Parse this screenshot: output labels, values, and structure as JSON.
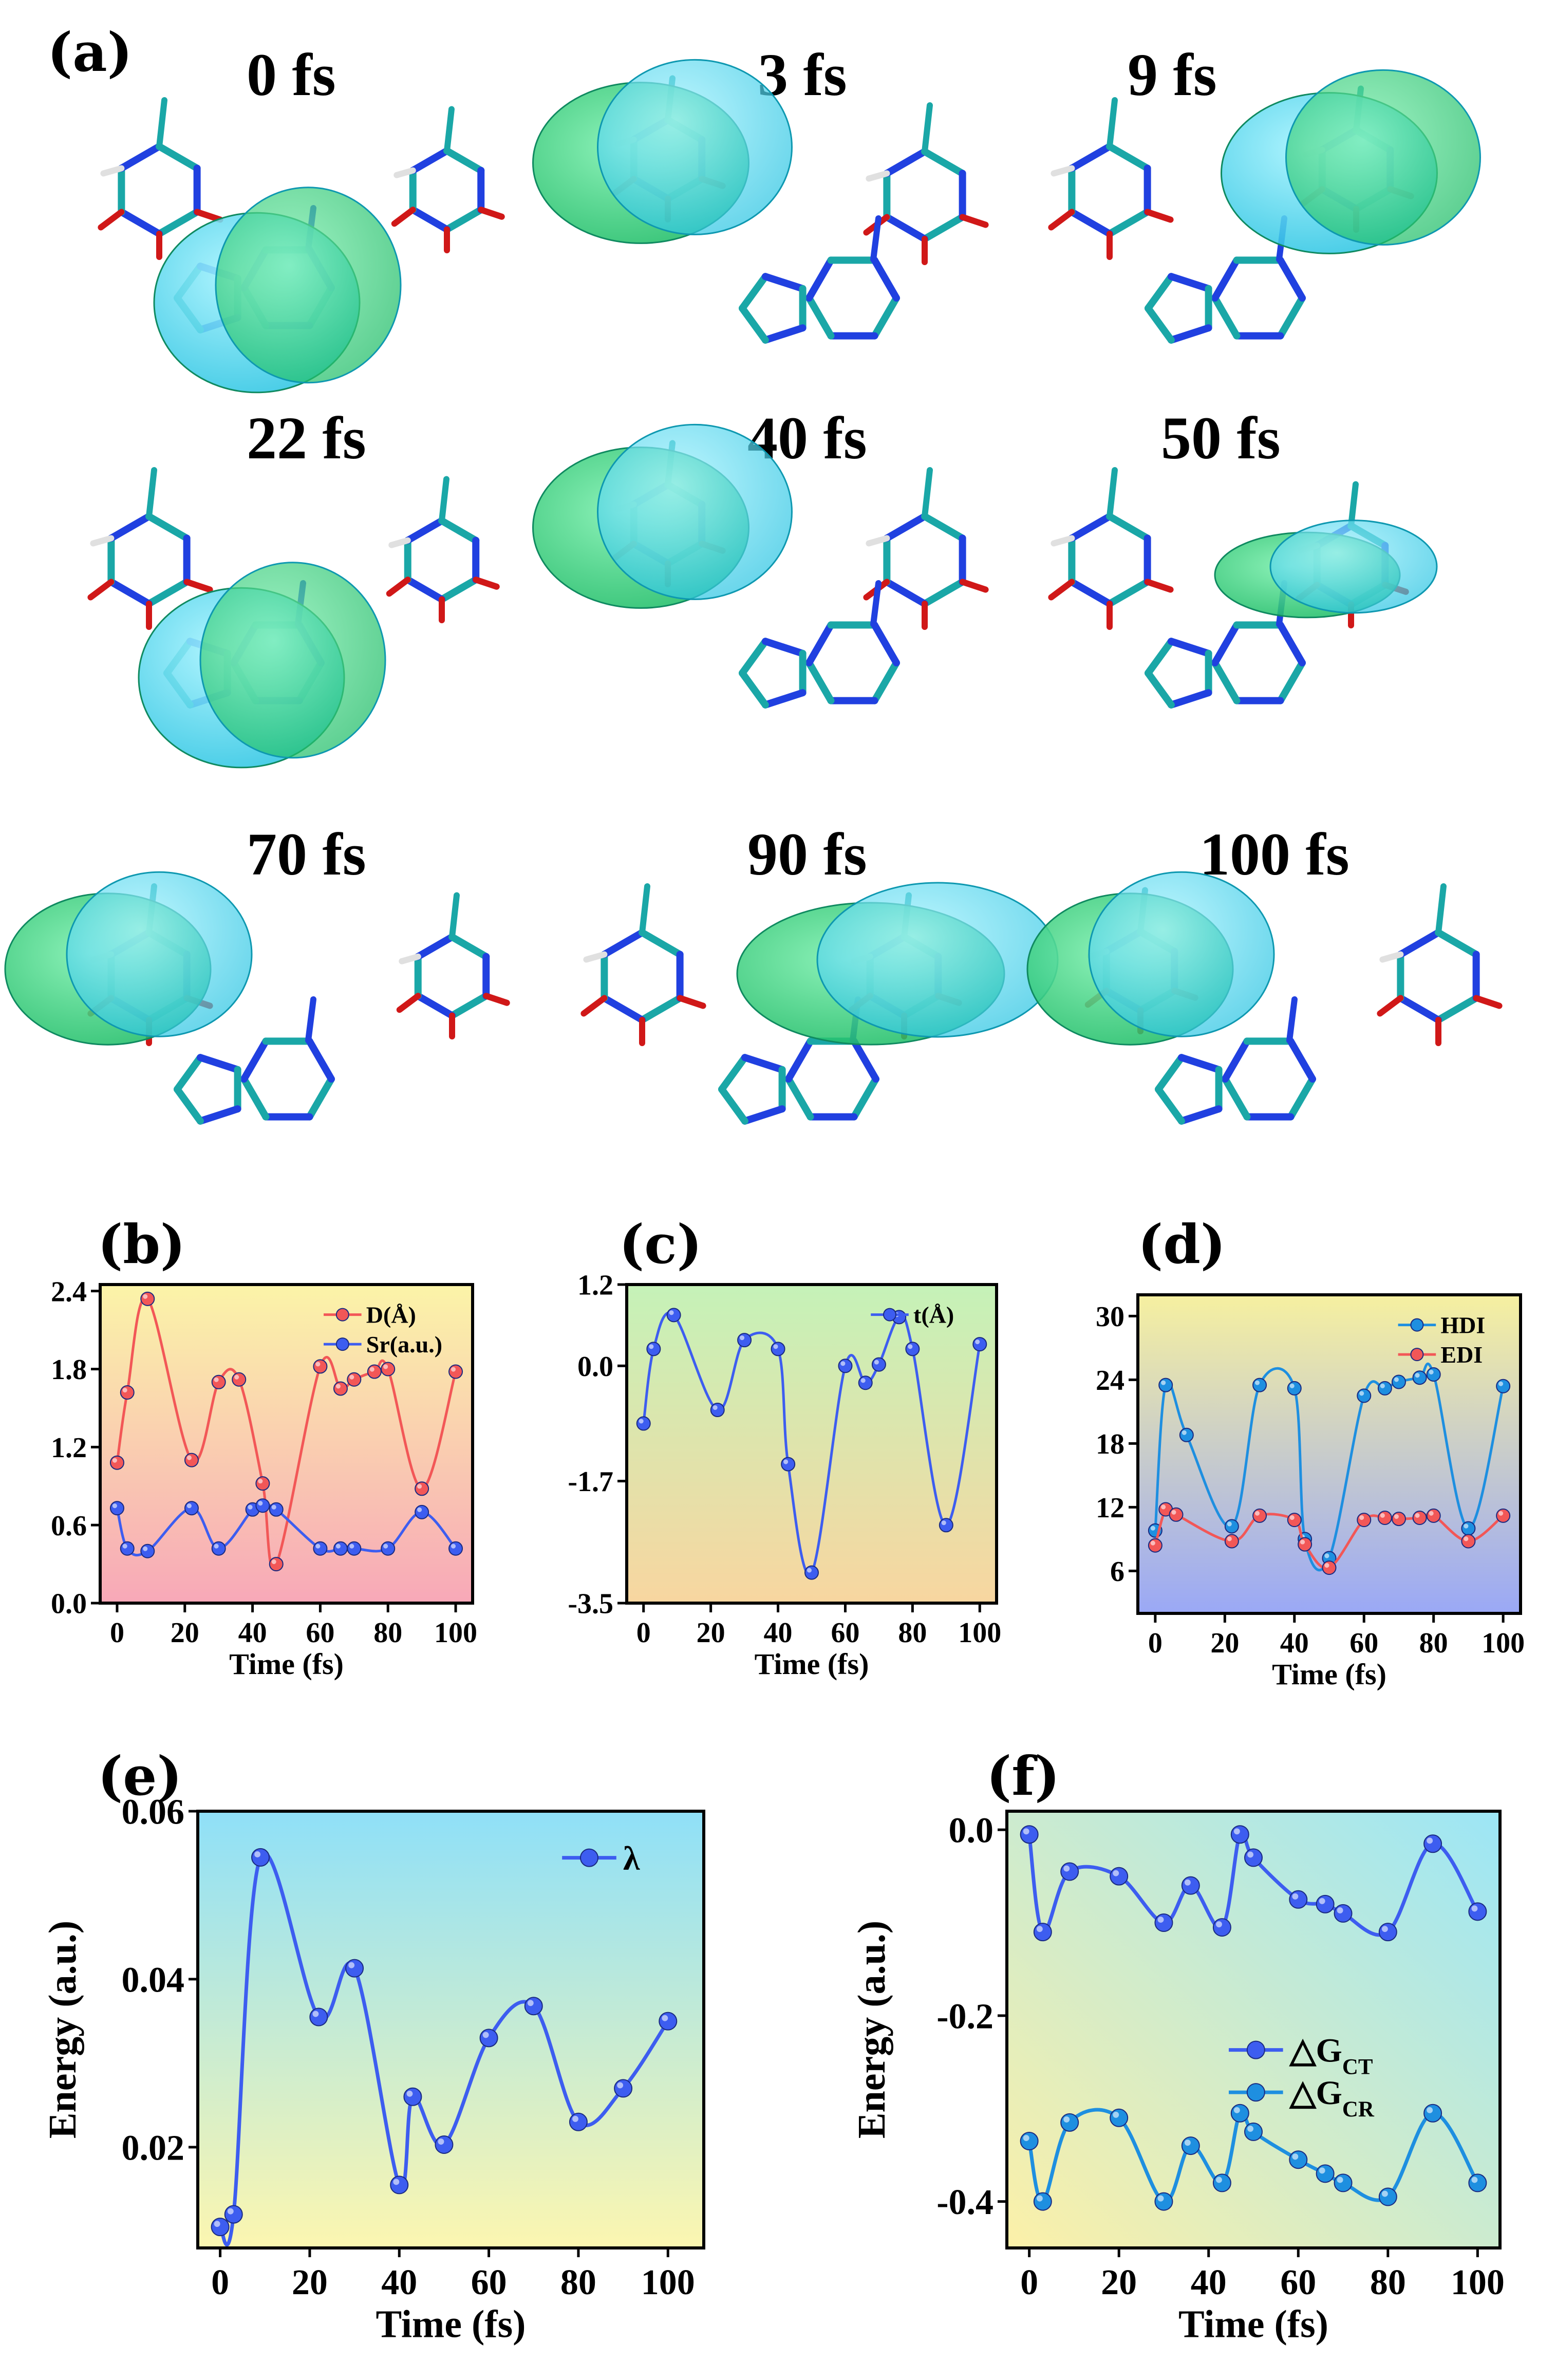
{
  "panel_labels": {
    "a": "(a)",
    "b": "(b)",
    "c": "(c)",
    "d": "(d)",
    "e": "(e)",
    "f": "(f)"
  },
  "snapshots": [
    {
      "time": "0 fs"
    },
    {
      "time": "3 fs"
    },
    {
      "time": "9 fs"
    },
    {
      "time": "22 fs"
    },
    {
      "time": "40 fs"
    },
    {
      "time": "50 fs"
    },
    {
      "time": "70 fs"
    },
    {
      "time": "90 fs"
    },
    {
      "time": "100 fs"
    }
  ],
  "colors": {
    "red": "#f25757",
    "blue": "#3d5df0",
    "cyan": "#1e8fe0",
    "orbital_green": "#2fd47a",
    "orbital_cyan": "#3fd6ee"
  },
  "chart_data": [
    {
      "id": "b",
      "type": "line",
      "xlabel": "Time (fs)",
      "ylabel": "",
      "xlim": [
        -5,
        105
      ],
      "ylim": [
        0.0,
        2.45
      ],
      "xticks": [
        0,
        20,
        40,
        60,
        80,
        100
      ],
      "xticklabels": [
        "0",
        "20",
        "40",
        "60",
        "80",
        "100"
      ],
      "yticks": [
        0.0,
        0.6,
        1.2,
        1.8,
        2.4
      ],
      "yticklabels": [
        "0.0",
        "0.6",
        "1.2",
        "1.8",
        "2.4"
      ],
      "legend_position": "top-right",
      "series": [
        {
          "name": "D(Å)",
          "color": "#f25757",
          "x": [
            0,
            3,
            9,
            22,
            30,
            36,
            43,
            47,
            60,
            66,
            70,
            76,
            80,
            90,
            100
          ],
          "y": [
            1.08,
            1.62,
            2.34,
            1.1,
            1.7,
            1.72,
            0.92,
            0.3,
            1.82,
            1.65,
            1.72,
            1.78,
            1.8,
            0.88,
            1.78
          ]
        },
        {
          "name": "Sr(a.u.)",
          "color": "#3d5df0",
          "x": [
            0,
            3,
            9,
            22,
            30,
            40,
            43,
            47,
            60,
            66,
            70,
            80,
            90,
            100
          ],
          "y": [
            0.73,
            0.42,
            0.4,
            0.73,
            0.42,
            0.72,
            0.75,
            0.72,
            0.42,
            0.42,
            0.42,
            0.42,
            0.7,
            0.42
          ]
        }
      ]
    },
    {
      "id": "c",
      "type": "line",
      "xlabel": "Time (fs)",
      "ylabel": "",
      "xlim": [
        -5,
        105
      ],
      "ylim": [
        -3.5,
        1.2
      ],
      "xticks": [
        0,
        20,
        40,
        60,
        80,
        100
      ],
      "xticklabels": [
        "0",
        "20",
        "40",
        "60",
        "80",
        "100"
      ],
      "yticks": [
        -3.5,
        -1.7,
        0.0,
        1.2
      ],
      "yticklabels": [
        "-3.5",
        "-1.7",
        "0.0",
        "1.2"
      ],
      "legend_position": "top-right",
      "series": [
        {
          "name": "t(Å)",
          "color": "#3d5df0",
          "x": [
            0,
            3,
            9,
            22,
            30,
            40,
            43,
            50,
            60,
            66,
            70,
            76,
            80,
            90,
            100
          ],
          "y": [
            -0.85,
            0.25,
            0.75,
            -0.65,
            0.38,
            0.25,
            -1.45,
            -3.05,
            0.0,
            -0.25,
            0.02,
            0.72,
            0.25,
            -2.35,
            0.32
          ]
        }
      ]
    },
    {
      "id": "d",
      "type": "line",
      "xlabel": "Time (fs)",
      "ylabel": "",
      "xlim": [
        -5,
        105
      ],
      "ylim": [
        2.0,
        32.0
      ],
      "xticks": [
        0,
        20,
        40,
        60,
        80,
        100
      ],
      "xticklabels": [
        "0",
        "20",
        "40",
        "60",
        "80",
        "100"
      ],
      "yticks": [
        6,
        12,
        18,
        24,
        30
      ],
      "yticklabels": [
        "6",
        "12",
        "18",
        "24",
        "30"
      ],
      "legend_position": "top-right",
      "series": [
        {
          "name": "HDI",
          "color": "#1e8fe0",
          "x": [
            0,
            3,
            9,
            22,
            30,
            40,
            43,
            50,
            60,
            66,
            70,
            76,
            80,
            90,
            100
          ],
          "y": [
            9.8,
            23.5,
            18.8,
            10.2,
            23.5,
            23.2,
            9.0,
            7.2,
            22.5,
            23.2,
            23.8,
            24.2,
            24.5,
            10.0,
            23.4
          ]
        },
        {
          "name": "EDI",
          "color": "#f25757",
          "x": [
            0,
            3,
            6,
            22,
            30,
            40,
            43,
            50,
            60,
            66,
            70,
            76,
            80,
            90,
            100
          ],
          "y": [
            8.4,
            11.8,
            11.3,
            8.8,
            11.2,
            10.8,
            8.5,
            6.3,
            10.8,
            11.0,
            10.9,
            11.0,
            11.2,
            8.8,
            11.2
          ]
        }
      ]
    },
    {
      "id": "e",
      "type": "line",
      "xlabel": "Time (fs)",
      "ylabel": "Energy (a.u.)",
      "xlim": [
        -5,
        108
      ],
      "ylim": [
        0.008,
        0.06
      ],
      "xticks": [
        0,
        20,
        40,
        60,
        80,
        100
      ],
      "xticklabels": [
        "0",
        "20",
        "40",
        "60",
        "80",
        "100"
      ],
      "yticks": [
        0.02,
        0.04,
        0.06
      ],
      "yticklabels": [
        "0.02",
        "0.04",
        "0.06"
      ],
      "legend_position": "top-right",
      "series": [
        {
          "name": "λ",
          "color": "#3d5df0",
          "x": [
            0,
            3,
            9,
            22,
            30,
            40,
            43,
            50,
            60,
            70,
            80,
            90,
            100
          ],
          "y": [
            0.0105,
            0.012,
            0.0545,
            0.0355,
            0.0413,
            0.0155,
            0.026,
            0.0203,
            0.033,
            0.0368,
            0.023,
            0.027,
            0.035
          ]
        }
      ]
    },
    {
      "id": "f",
      "type": "line",
      "xlabel": "Time (fs)",
      "ylabel": "Energy (a.u.)",
      "xlim": [
        -5,
        105
      ],
      "ylim": [
        -0.45,
        0.02
      ],
      "xticks": [
        0,
        20,
        40,
        60,
        80,
        100
      ],
      "xticklabels": [
        "0",
        "20",
        "40",
        "60",
        "80",
        "100"
      ],
      "yticks": [
        -0.4,
        -0.2,
        0.0
      ],
      "yticklabels": [
        "-0.4",
        "-0.2",
        "0.0"
      ],
      "legend_position": "right",
      "series": [
        {
          "name": "△G",
          "sub": "CT",
          "color": "#3d5df0",
          "x": [
            0,
            3,
            9,
            20,
            30,
            36,
            43,
            47,
            50,
            60,
            66,
            70,
            80,
            90,
            100
          ],
          "y": [
            -0.005,
            -0.11,
            -0.045,
            -0.05,
            -0.1,
            -0.06,
            -0.105,
            -0.005,
            -0.03,
            -0.075,
            -0.08,
            -0.09,
            -0.11,
            -0.015,
            -0.088
          ]
        },
        {
          "name": "△G",
          "sub": "CR",
          "color": "#1e8fe0",
          "x": [
            0,
            3,
            9,
            20,
            30,
            36,
            43,
            47,
            50,
            60,
            66,
            70,
            80,
            90,
            100
          ],
          "y": [
            -0.335,
            -0.4,
            -0.315,
            -0.31,
            -0.4,
            -0.34,
            -0.38,
            -0.305,
            -0.325,
            -0.355,
            -0.37,
            -0.38,
            -0.395,
            -0.305,
            -0.38
          ]
        }
      ]
    }
  ]
}
